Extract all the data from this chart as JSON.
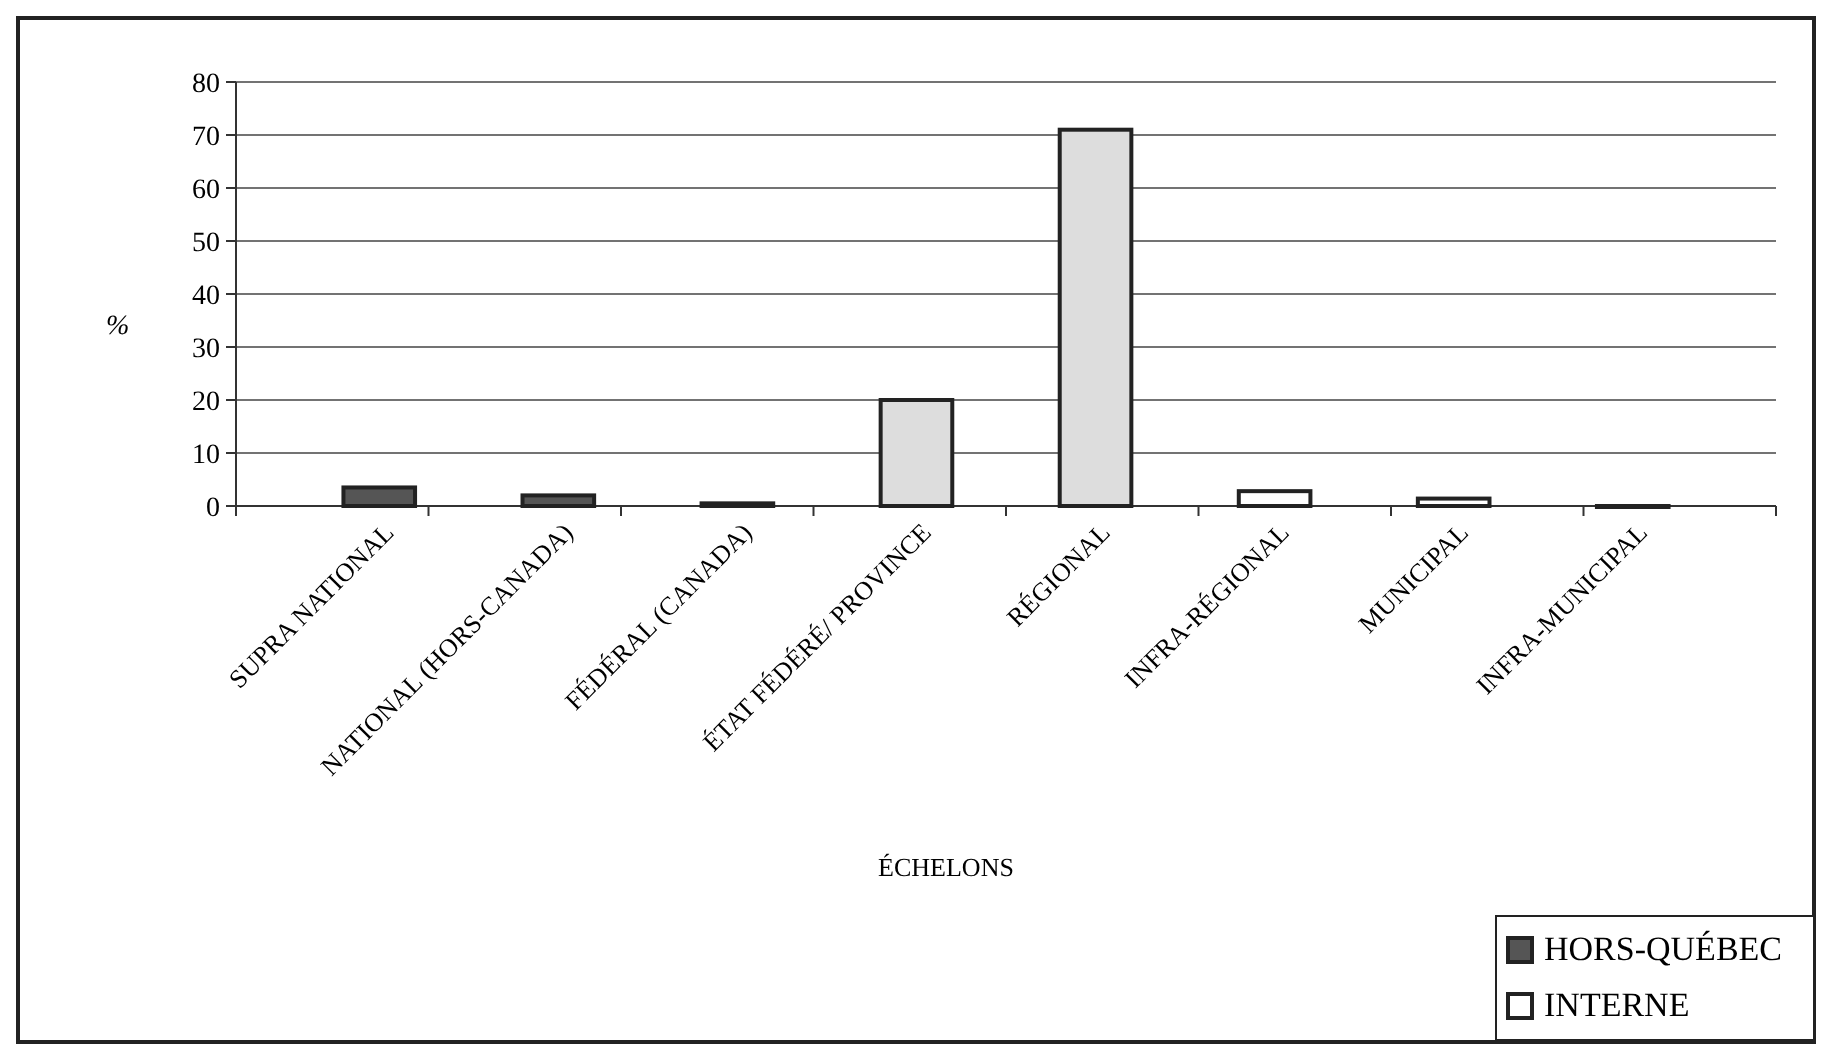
{
  "chart_data": {
    "type": "bar",
    "xlabel": "ÉCHELONS",
    "ylabel": "%",
    "categories": [
      "SUPRA NATIONAL",
      "NATIONAL (HORS-CANADA)",
      "FÉDÉRAL (CANADA)",
      "ÉTAT FÉDÉRÉ/ PROVINCE",
      "RÉGIONAL",
      "INFRA-RÉGIONAL",
      "MUNICIPAL",
      "INFRA-MUNICIPAL"
    ],
    "series": [
      {
        "name": "HORS-QUÉBEC",
        "color": "#555555",
        "values": [
          3.5,
          2,
          0.5,
          null,
          null,
          null,
          null,
          null
        ]
      },
      {
        "name": "INTERNE",
        "color": "#ffffff",
        "colors": [
          null,
          null,
          null,
          "#dddddd",
          "#dddddd",
          "#ffffff",
          "#ffffff",
          "#ffffff"
        ],
        "values": [
          null,
          null,
          null,
          20,
          71,
          2.8,
          1.4,
          0
        ]
      }
    ],
    "ylim": [
      0,
      80
    ],
    "yticks": [
      0,
      10,
      20,
      30,
      40,
      50,
      60,
      70,
      80
    ],
    "grid": "y",
    "legend": "bottom right"
  }
}
